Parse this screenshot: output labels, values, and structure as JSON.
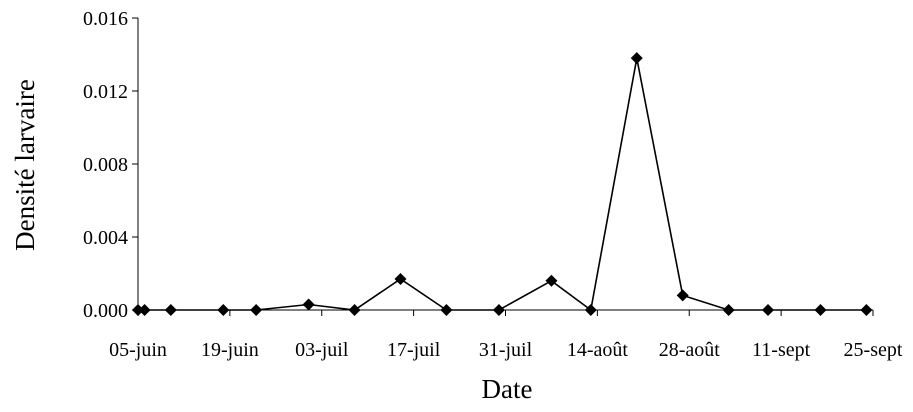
{
  "chart_data": {
    "type": "line",
    "xlabel": "Date",
    "ylabel": "Densité larvaire",
    "ylim": [
      0,
      0.016
    ],
    "y_ticks": [
      "0.000",
      "0.004",
      "0.008",
      "0.012",
      "0.016"
    ],
    "x_ticks": [
      {
        "date": "2000-06-05",
        "label": "05-juin"
      },
      {
        "date": "2000-06-19",
        "label": "19-juin"
      },
      {
        "date": "2000-07-03",
        "label": "03-juil"
      },
      {
        "date": "2000-07-17",
        "label": "17-juil"
      },
      {
        "date": "2000-07-31",
        "label": "31-juil"
      },
      {
        "date": "2000-08-14",
        "label": "14-août"
      },
      {
        "date": "2000-08-28",
        "label": "28-août"
      },
      {
        "date": "2000-09-11",
        "label": "11-sept"
      },
      {
        "date": "2000-09-25",
        "label": "25-sept"
      }
    ],
    "grid": false,
    "line_color": "#000000",
    "marker": "diamond",
    "series": [
      {
        "points": [
          {
            "x": "2000-06-05",
            "y": 0.0
          },
          {
            "x": "2000-06-06",
            "y": 0.0
          },
          {
            "x": "2000-06-10",
            "y": 0.0
          },
          {
            "x": "2000-06-18",
            "y": 0.0
          },
          {
            "x": "2000-06-23",
            "y": 0.0
          },
          {
            "x": "2000-07-01",
            "y": 0.0003
          },
          {
            "x": "2000-07-08",
            "y": 0.0
          },
          {
            "x": "2000-07-15",
            "y": 0.0017
          },
          {
            "x": "2000-07-22",
            "y": 0.0
          },
          {
            "x": "2000-07-30",
            "y": 0.0
          },
          {
            "x": "2000-08-07",
            "y": 0.0016
          },
          {
            "x": "2000-08-13",
            "y": 0.0
          },
          {
            "x": "2000-08-20",
            "y": 0.0138
          },
          {
            "x": "2000-08-27",
            "y": 0.0008
          },
          {
            "x": "2000-09-03",
            "y": 0.0
          },
          {
            "x": "2000-09-09",
            "y": 0.0
          },
          {
            "x": "2000-09-17",
            "y": 0.0
          },
          {
            "x": "2000-09-24",
            "y": 0.0
          }
        ]
      }
    ]
  }
}
